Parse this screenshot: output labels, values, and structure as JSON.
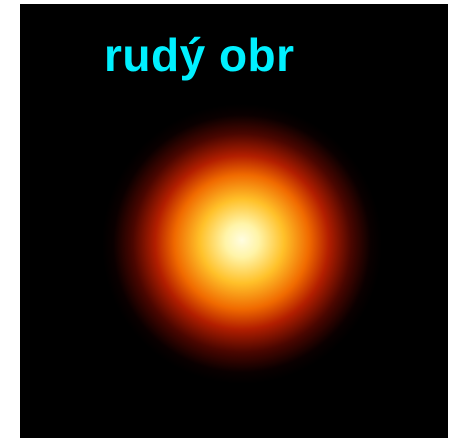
{
  "label": "rudý obr"
}
